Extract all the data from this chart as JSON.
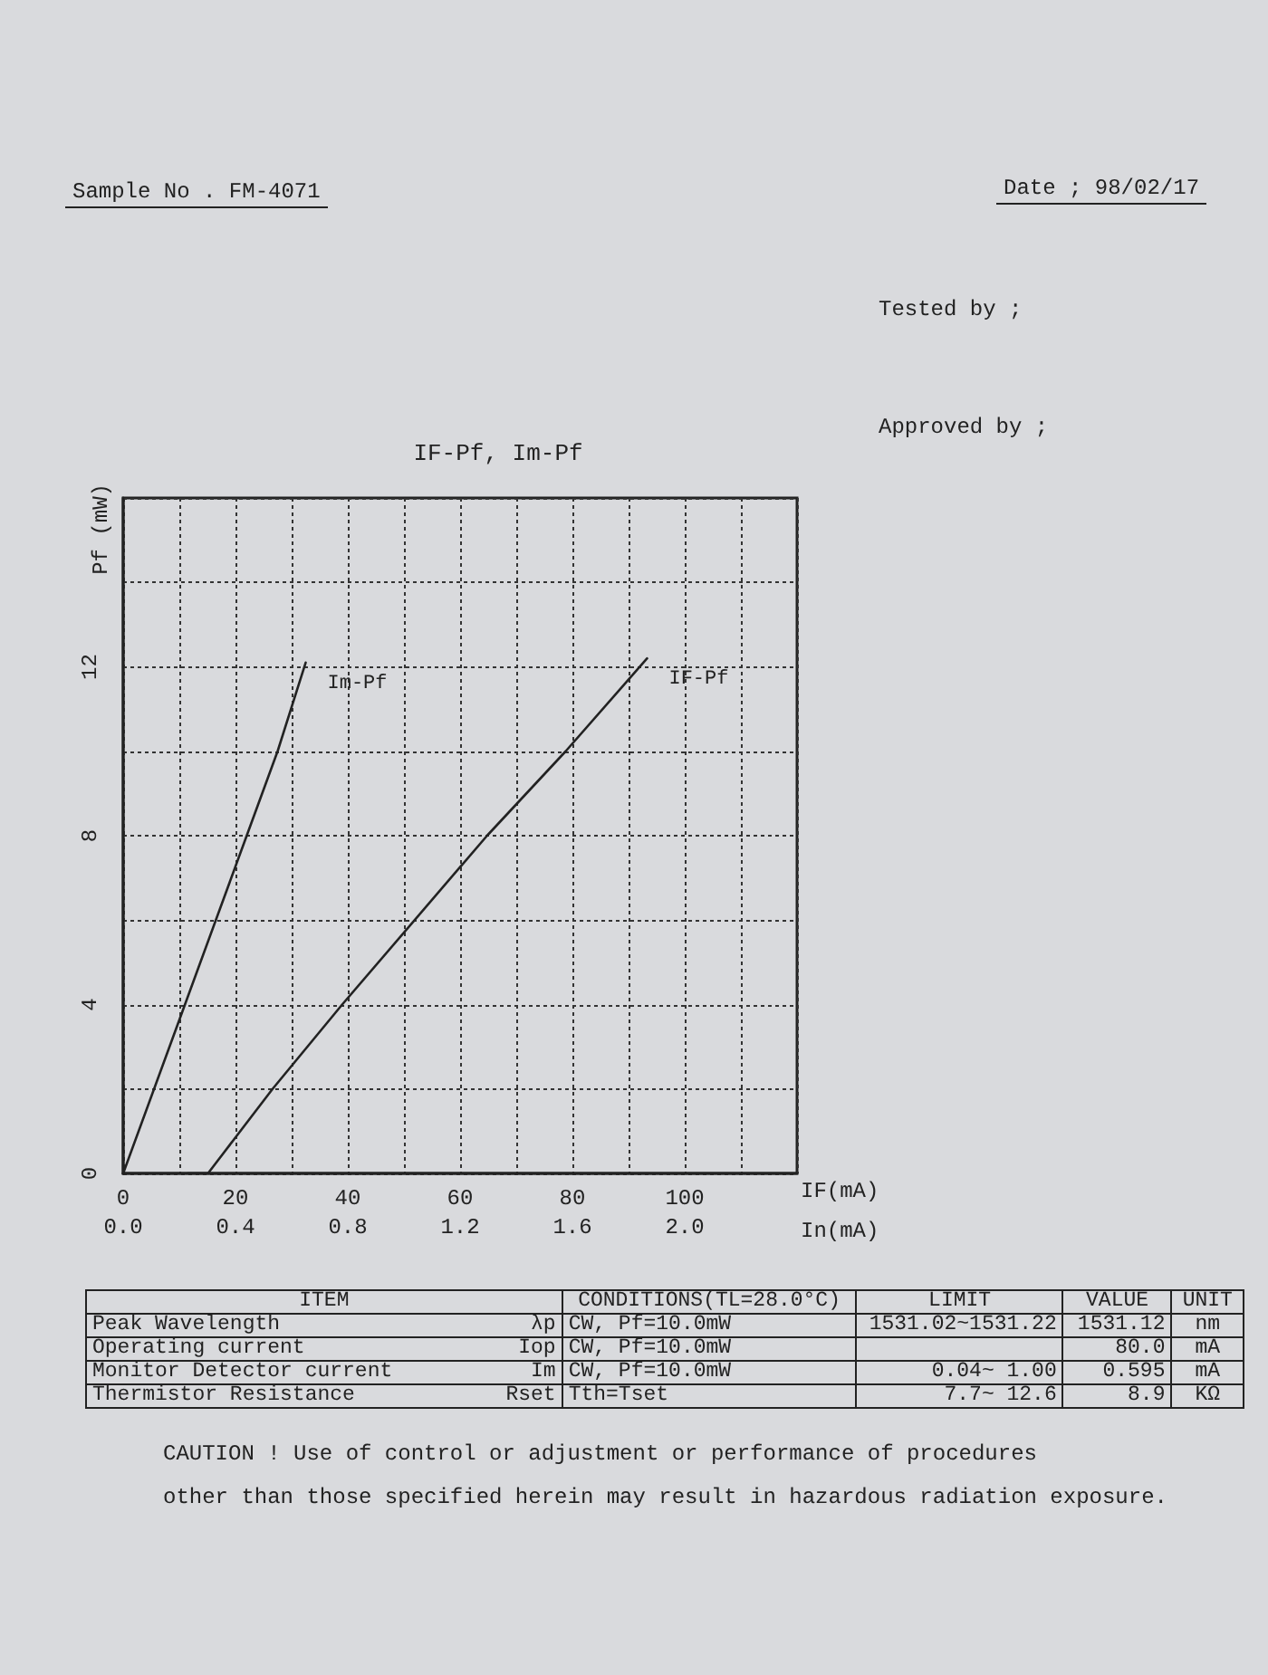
{
  "chart_data": {
    "type": "line",
    "title": "IF-Pf, Im-Pf",
    "xlabel": "IF(mA)",
    "x2label": "In(mA)",
    "ylabel": "Pf (mW)",
    "xlim": [
      0,
      120
    ],
    "xticks": [
      0,
      {
        "value": 10,
        "label": null
      },
      20,
      {
        "value": 30,
        "label": null
      },
      40,
      {
        "value": 50,
        "label": null
      },
      60,
      {
        "value": 70,
        "label": null
      },
      80,
      {
        "value": 90,
        "label": null
      },
      100,
      {
        "value": 110,
        "label": null
      },
      {
        "value": 120,
        "label": null
      }
    ],
    "x2lim": [
      0,
      2.4
    ],
    "x2ticks": [
      {
        "value": 0,
        "label": "0.0"
      },
      {
        "value": 0.4,
        "label": "0.4"
      },
      {
        "value": 0.8,
        "label": "0.8"
      },
      {
        "value": 1.2,
        "label": "1.2"
      },
      {
        "value": 1.6,
        "label": "1.6"
      },
      {
        "value": 2,
        "label": "2.0"
      },
      {
        "value": 2.4,
        "label": null
      }
    ],
    "ylim": [
      0,
      16
    ],
    "yticks": [
      0,
      {
        "value": 2,
        "label": null
      },
      4,
      {
        "value": 6,
        "label": null
      },
      8,
      {
        "value": 10,
        "label": null
      },
      12,
      {
        "value": 14,
        "label": null
      },
      {
        "value": 16,
        "label": null
      }
    ],
    "grid": true,
    "marker": "none",
    "line_style": "solid",
    "series": [
      {
        "name": "Im-Pf",
        "color": "#222222",
        "axis": "x2",
        "x": [
          0,
          0.22,
          0.44,
          0.55,
          0.65
        ],
        "values": [
          0,
          4,
          8,
          10,
          12.1
        ]
      },
      {
        "name": "IF-Pf",
        "color": "#222222",
        "x": [
          11.5,
          15.1,
          26.6,
          39,
          64.8,
          78.8,
          93.3
        ],
        "values": [
          0,
          0,
          2,
          4,
          8,
          10,
          12.2
        ]
      }
    ],
    "annotations": [
      "Sample No . FM-4071",
      "Date ; 98/02/17",
      "Tested by ;",
      "Approved by ;",
      "ITEM",
      "CONDITIONS(TL=28.0°C)",
      "LIMIT",
      "VALUE",
      "UNIT",
      "Peak Wavelength",
      "λp",
      "CW, Pf=10.0mW",
      "1531.02~1531.22",
      "1531.12",
      "nm",
      "Operating current",
      "Iop",
      "CW, Pf=10.0mW",
      "80.0",
      "mA",
      "Monitor Detector current",
      "Im",
      "CW, Pf=10.0mW",
      "0.04~ 1.00",
      "0.595",
      "mA",
      "Thermistor Resistance",
      "Rset",
      "Tth=Tset",
      "7.7~ 12.6",
      "8.9",
      "KΩ",
      "CAUTION ! Use of control or adjustment or performance of procedures",
      "other than those specified herein may result in hazardous radiation exposure."
    ]
  }
}
